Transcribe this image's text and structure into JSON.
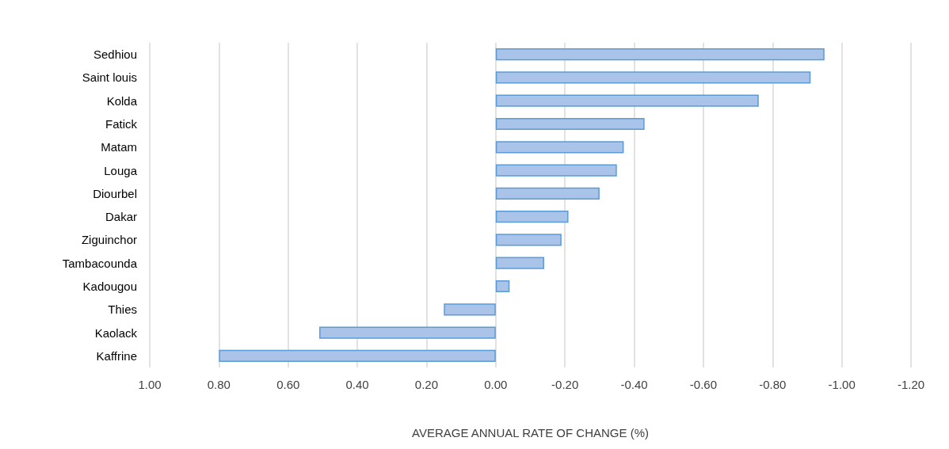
{
  "chart_data": {
    "type": "bar",
    "orientation": "horizontal",
    "xlabel": "AVERAGE ANNUAL RATE OF CHANGE (%)",
    "categories": [
      "Sedhiou",
      "Saint louis",
      "Kolda",
      "Fatick",
      "Matam",
      "Louga",
      "Diourbel",
      "Dakar",
      "Ziguinchor",
      "Tambacounda",
      "Kadougou",
      "Thies",
      "Kaolack",
      "Kaffrine"
    ],
    "values": [
      -0.95,
      -0.91,
      -0.76,
      -0.43,
      -0.37,
      -0.35,
      -0.3,
      -0.21,
      -0.19,
      -0.14,
      -0.04,
      0.15,
      0.51,
      0.8
    ],
    "color": "#a9c4e8",
    "xlim": [
      1.0,
      -1.2
    ],
    "xticks": [
      {
        "value": 1,
        "label": "1.00"
      },
      {
        "value": 0.8,
        "label": "0.80"
      },
      {
        "value": 0.6,
        "label": "0.60"
      },
      {
        "value": 0.4,
        "label": "0.40"
      },
      {
        "value": 0.2,
        "label": "0.20"
      },
      {
        "value": 0,
        "label": "0.00"
      },
      {
        "value": -0.2,
        "label": "-0.20"
      },
      {
        "value": -0.4,
        "label": "-0.40"
      },
      {
        "value": -0.6,
        "label": "-0.60"
      },
      {
        "value": -0.8,
        "label": "-0.80"
      },
      {
        "value": -1,
        "label": "-1.00"
      },
      {
        "value": -1.2,
        "label": "-1.20"
      }
    ],
    "grid": "x"
  }
}
